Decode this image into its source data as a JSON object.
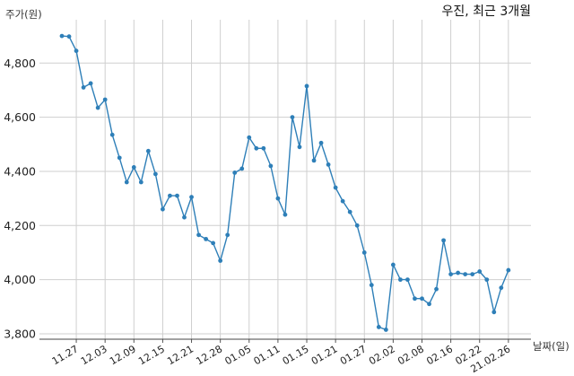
{
  "chart_data": {
    "type": "line",
    "title": "우진, 최근 3개월",
    "ylabel": "주가(원)",
    "xlabel": "날짜(일)",
    "ylim": [
      3780,
      4960
    ],
    "y_ticks": [
      3800,
      4000,
      4200,
      4400,
      4600,
      4800
    ],
    "y_tick_labels": [
      "3,800",
      "4,000",
      "4,200",
      "4,400",
      "4,600",
      "4,800"
    ],
    "x_tick_labels": [
      "11.27",
      "12.03",
      "12.09",
      "12.15",
      "12.21",
      "12.28",
      "01.05",
      "01.11",
      "01.15",
      "01.21",
      "01.27",
      "02.02",
      "02.08",
      "02.16",
      "02.22",
      "21.02.26"
    ],
    "x_tick_indices": [
      2,
      6,
      10,
      14,
      18,
      22,
      26,
      30,
      34,
      38,
      42,
      46,
      50,
      54,
      58,
      62
    ],
    "grid": true,
    "line_color": "#2e7fb8",
    "values": [
      4900,
      4898,
      4845,
      4710,
      4725,
      4635,
      4665,
      4535,
      4450,
      4360,
      4415,
      4360,
      4475,
      4390,
      4260,
      4310,
      4310,
      4230,
      4305,
      4165,
      4150,
      4135,
      4070,
      4165,
      4395,
      4410,
      4525,
      4485,
      4485,
      4420,
      4300,
      4240,
      4600,
      4490,
      4715,
      4440,
      4505,
      4425,
      4340,
      4290,
      4250,
      4200,
      4100,
      3980,
      3825,
      3815,
      4055,
      4000,
      4000,
      3930,
      3930,
      3910,
      3965,
      4145,
      4020,
      4025,
      4020,
      4020,
      4030,
      4000,
      3880,
      3970,
      4035
    ]
  }
}
